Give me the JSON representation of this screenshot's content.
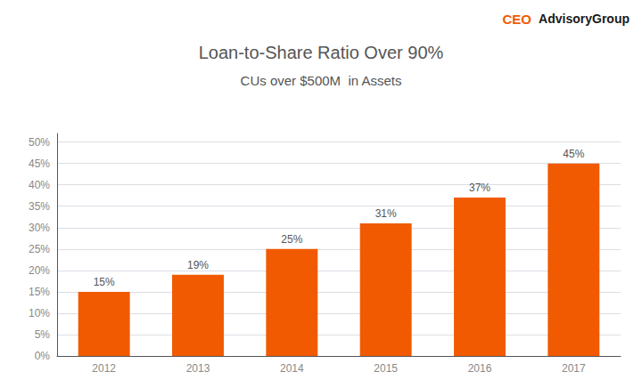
{
  "chart_data": {
    "type": "bar",
    "title": "Loan-to-Share Ratio Over 90%",
    "subtitle": "CUs over $500M  in Assets",
    "categories": [
      "2012",
      "2013",
      "2014",
      "2015",
      "2016",
      "2017"
    ],
    "values": [
      15,
      19,
      25,
      31,
      37,
      45
    ],
    "value_labels": [
      "15%",
      "19%",
      "25%",
      "31%",
      "37%",
      "45%"
    ],
    "data_labels": true,
    "color": "#F15A00",
    "ylim": [
      0,
      52
    ],
    "yticks": [
      {
        "value": 0,
        "label": "0%"
      },
      {
        "value": 5,
        "label": "5%"
      },
      {
        "value": 10,
        "label": "10%"
      },
      {
        "value": 15,
        "label": "15%"
      },
      {
        "value": 20,
        "label": "20%"
      },
      {
        "value": 25,
        "label": "25%"
      },
      {
        "value": 30,
        "label": "30%"
      },
      {
        "value": 35,
        "label": "35%"
      },
      {
        "value": 40,
        "label": "40%"
      },
      {
        "value": 45,
        "label": "45%"
      },
      {
        "value": 50,
        "label": "50%"
      }
    ],
    "grid": true,
    "annotations": [
      {
        "text": "CEO",
        "color": "#F15A00"
      },
      {
        "text": "AdvisoryGroup",
        "color": "#1A1A1A"
      }
    ]
  }
}
